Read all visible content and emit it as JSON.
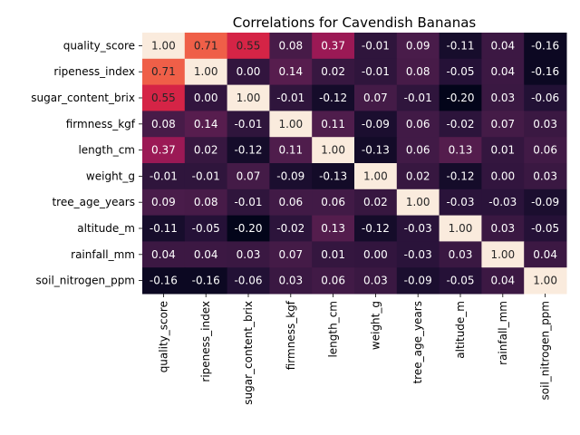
{
  "chart_data": {
    "type": "heatmap",
    "title": "Correlations for Cavendish Bananas",
    "xlabel": "",
    "ylabel": "",
    "colormap": "rocket",
    "value_range": [
      -0.2,
      1.0
    ],
    "colorbar": false,
    "labels": [
      "quality_score",
      "ripeness_index",
      "sugar_content_brix",
      "firmness_kgf",
      "length_cm",
      "weight_g",
      "tree_age_years",
      "altitude_m",
      "rainfall_mm",
      "soil_nitrogen_ppm"
    ],
    "values": [
      [
        1.0,
        0.71,
        0.55,
        0.08,
        0.37,
        -0.01,
        0.09,
        -0.11,
        0.04,
        -0.16
      ],
      [
        0.71,
        1.0,
        -0.0,
        0.14,
        0.02,
        -0.01,
        0.08,
        -0.05,
        0.04,
        -0.16
      ],
      [
        0.55,
        -0.0,
        1.0,
        -0.01,
        -0.12,
        0.07,
        -0.01,
        -0.2,
        0.03,
        -0.06
      ],
      [
        0.08,
        0.14,
        -0.01,
        1.0,
        0.11,
        -0.09,
        0.06,
        -0.02,
        0.07,
        0.03
      ],
      [
        0.37,
        0.02,
        -0.12,
        0.11,
        1.0,
        -0.13,
        0.06,
        0.13,
        0.01,
        0.06
      ],
      [
        -0.01,
        -0.01,
        0.07,
        -0.09,
        -0.13,
        1.0,
        0.02,
        -0.12,
        0.0,
        0.03
      ],
      [
        0.09,
        0.08,
        -0.01,
        0.06,
        0.06,
        0.02,
        1.0,
        -0.03,
        -0.03,
        -0.09
      ],
      [
        -0.11,
        -0.05,
        -0.2,
        -0.02,
        0.13,
        -0.12,
        -0.03,
        1.0,
        0.03,
        -0.05
      ],
      [
        0.04,
        0.04,
        0.03,
        0.07,
        0.01,
        0.0,
        -0.03,
        0.03,
        1.0,
        0.04
      ],
      [
        -0.16,
        -0.16,
        -0.06,
        0.03,
        0.06,
        0.03,
        -0.09,
        -0.05,
        0.04,
        1.0
      ]
    ]
  }
}
